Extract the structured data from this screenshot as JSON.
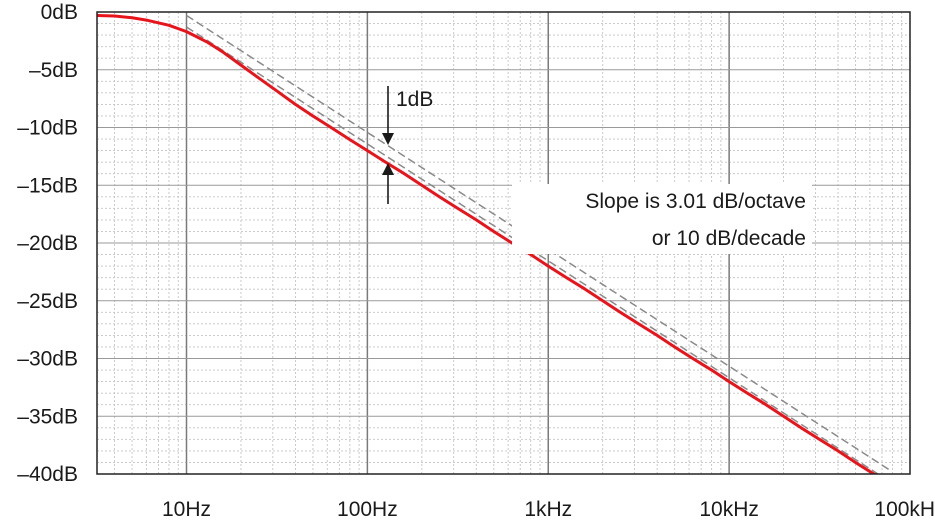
{
  "chart_data": {
    "type": "line",
    "title": "",
    "xlabel": "",
    "ylabel": "",
    "x_scale": "log",
    "xlim": [
      3.2,
      100000
    ],
    "ylim": [
      -40,
      0
    ],
    "grid": true,
    "x_ticks": [
      {
        "value": 10,
        "label": "10Hz"
      },
      {
        "value": 100,
        "label": "100Hz"
      },
      {
        "value": 1000,
        "label": "1kHz"
      },
      {
        "value": 10000,
        "label": "10kHz"
      },
      {
        "value": 100000,
        "label": "100kHz"
      }
    ],
    "y_ticks": [
      {
        "value": 0,
        "label": "0dB"
      },
      {
        "value": -5,
        "label": "–5dB"
      },
      {
        "value": -10,
        "label": "–10dB"
      },
      {
        "value": -15,
        "label": "–15dB"
      },
      {
        "value": -20,
        "label": "–20dB"
      },
      {
        "value": -25,
        "label": "–25dB"
      },
      {
        "value": -30,
        "label": "–30dB"
      },
      {
        "value": -35,
        "label": "–35dB"
      },
      {
        "value": -40,
        "label": "–40dB"
      }
    ],
    "series": [
      {
        "color": "#e8141c",
        "x": [
          3.2,
          4,
          5,
          6,
          8,
          10,
          13,
          16,
          20,
          25,
          32,
          40,
          50,
          63,
          80,
          100,
          126,
          160,
          200,
          250,
          316,
          400,
          500,
          630,
          800,
          1000,
          1260,
          1600,
          2000,
          2500,
          3160,
          4000,
          5000,
          6300,
          8000,
          10000,
          12600,
          16000,
          20000,
          25000,
          31600,
          40000,
          50000,
          63000,
          75000
        ],
        "values": [
          -0.3,
          -0.35,
          -0.5,
          -0.7,
          -1.15,
          -1.7,
          -2.6,
          -3.5,
          -4.6,
          -5.7,
          -6.9,
          -8.0,
          -9.0,
          -10.0,
          -11.05,
          -12.0,
          -13.0,
          -14.0,
          -15.0,
          -16.0,
          -17.0,
          -18.0,
          -19.0,
          -20.0,
          -21.0,
          -22.0,
          -23.0,
          -24.0,
          -25.0,
          -26.0,
          -27.0,
          -28.0,
          -29.0,
          -30.0,
          -31.0,
          -32.0,
          -33.0,
          -34.0,
          -35.0,
          -36.0,
          -37.0,
          -38.0,
          -39.0,
          -40.0,
          -40.4
        ]
      }
    ],
    "asymptotes": [
      {
        "color": "#8a8a8a",
        "x": [
          10,
          78000
        ],
        "values": [
          -0.3,
          -39.7
        ]
      },
      {
        "color": "#8a8a8a",
        "x": [
          10,
          78000
        ],
        "values": [
          -1.3,
          -40.7
        ]
      }
    ],
    "annotations": {
      "offset_label": "1dB",
      "slope_line1": "Slope is 3.01 dB/octave",
      "slope_line2": "or 10 dB/decade"
    }
  }
}
